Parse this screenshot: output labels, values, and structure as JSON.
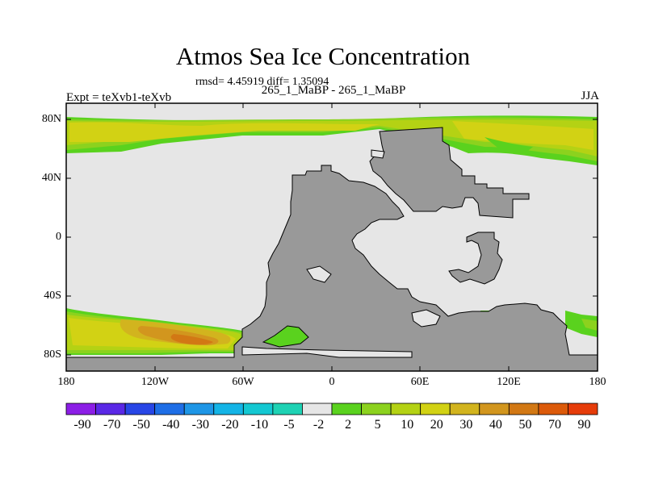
{
  "title": "Atmos Sea Ice Concentration",
  "stats": "rmsd= 4.45919 diff= 1.35094",
  "subtitle": "265_1_MaBP - 265_1_MaBP",
  "experiment": "Expt = teXvb1-teXvb",
  "season": "JJA",
  "lat_labels": [
    "80N",
    "40N",
    "0",
    "40S",
    "80S"
  ],
  "lon_labels": [
    "180",
    "120W",
    "60W",
    "0",
    "60E",
    "120E",
    "180"
  ],
  "colorbar": {
    "labels": [
      "-90",
      "-70",
      "-50",
      "-40",
      "-30",
      "-20",
      "-10",
      "-5",
      "-2",
      "2",
      "5",
      "10",
      "20",
      "30",
      "40",
      "50",
      "70",
      "90"
    ],
    "colors": [
      "#8c1ee6",
      "#5a28e6",
      "#2846e6",
      "#1e6ee6",
      "#1e96e6",
      "#14b4e6",
      "#14c8d2",
      "#1ed2b4",
      "#e6e6e6",
      "#5ad21e",
      "#8cd21e",
      "#b4d214",
      "#d2d214",
      "#d2b41e",
      "#d2961e",
      "#d27814",
      "#dc5a0a",
      "#e63c0a"
    ]
  },
  "map_colors": {
    "ocean": "#e6e6e6",
    "land": "#999999",
    "ice_2_5": "#5ad21e",
    "ice_5_10": "#8cd21e",
    "ice_10_20": "#b4d214",
    "ice_20_30": "#d2d214",
    "ice_30_40": "#d2b41e",
    "ice_40_50": "#d2961e",
    "ice_50_70": "#d27814"
  }
}
